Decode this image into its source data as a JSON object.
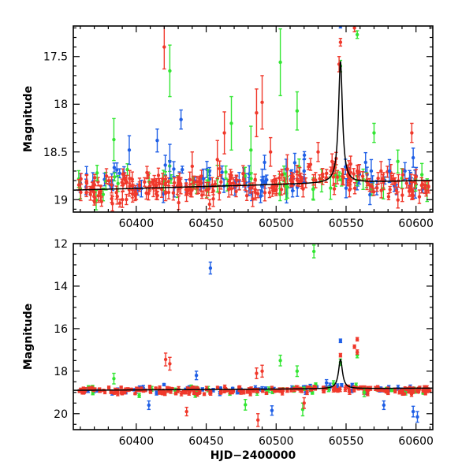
{
  "colors": {
    "green": "#33e633",
    "blue": "#1f5fe6",
    "red": "#f0382b",
    "model": "#000000"
  },
  "chart_data": [
    {
      "type": "scatter",
      "panel": "top",
      "ylabel": "Magnitude",
      "xlabel": "",
      "xlim": [
        60355,
        60612
      ],
      "ylim": [
        19.13,
        17.18
      ],
      "y_inverted": true,
      "x_ticks": [
        60400,
        60450,
        60500,
        60550,
        60600
      ],
      "y_ticks": [
        17.5,
        18,
        18.5,
        19
      ],
      "y_tick_labels": [
        "17.5",
        "18",
        "18.5",
        "19"
      ],
      "series": [
        {
          "color": "blue",
          "points": [
            [
              60395,
              18.48,
              0.15
            ],
            [
              60415,
              18.38,
              0.12
            ],
            [
              60424,
              18.6,
              0.18
            ],
            [
              60432,
              18.16,
              0.1
            ],
            [
              60448,
              18.78,
              0.1
            ],
            [
              60490,
              18.8,
              0.12
            ],
            [
              60520,
              18.7,
              0.12
            ],
            [
              60546,
              17.18,
              0.02
            ],
            [
              60550,
              18.88,
              0.1
            ],
            [
              60568,
              18.7,
              0.12
            ],
            [
              60581,
              18.7,
              0.12
            ],
            [
              60598,
              18.56,
              0.1
            ]
          ]
        },
        {
          "color": "green",
          "points": [
            [
              60372,
              18.72,
              0.08
            ],
            [
              60384,
              18.37,
              0.22
            ],
            [
              60424,
              17.65,
              0.27
            ],
            [
              60458,
              18.78,
              0.14
            ],
            [
              60468,
              18.2,
              0.28
            ],
            [
              60482,
              18.48,
              0.25
            ],
            [
              60503,
              17.56,
              0.35
            ],
            [
              60507,
              18.86,
              0.14
            ],
            [
              60515,
              18.07,
              0.2
            ],
            [
              60546,
              17.6,
              0.06
            ],
            [
              60558,
              17.27,
              0.04
            ],
            [
              60570,
              18.3,
              0.1
            ],
            [
              60587,
              18.6,
              0.12
            ]
          ]
        },
        {
          "color": "red",
          "points": [
            [
              60420,
              17.4,
              0.23
            ],
            [
              60440,
              18.65,
              0.15
            ],
            [
              60458,
              18.58,
              0.2
            ],
            [
              60463,
              18.3,
              0.22
            ],
            [
              60486,
              18.09,
              0.25
            ],
            [
              60490,
              17.98,
              0.28
            ],
            [
              60496,
              18.5,
              0.15
            ],
            [
              60508,
              18.68,
              0.15
            ],
            [
              60530,
              18.5,
              0.1
            ],
            [
              60540,
              18.6,
              0.08
            ],
            [
              60545,
              17.58,
              0.08
            ],
            [
              60546,
              17.35,
              0.04
            ],
            [
              60556,
              17.2,
              0.04
            ],
            [
              60558,
              18.7,
              0.06
            ],
            [
              60575,
              18.7,
              0.1
            ],
            [
              60597,
              18.3,
              0.1
            ],
            [
              60604,
              18.85,
              0.08
            ]
          ]
        }
      ],
      "scatter_band": {
        "blue": {
          "x_from": 60358,
          "x_to": 60610,
          "count": 75,
          "center_mag": 18.82,
          "scatter": 0.14,
          "error": 0.07
        },
        "green": {
          "x_from": 60358,
          "x_to": 60610,
          "count": 45,
          "center_mag": 18.84,
          "scatter": 0.14,
          "error": 0.08
        },
        "red": {
          "x_from": 60358,
          "x_to": 60610,
          "count": 230,
          "center_mag": 18.86,
          "scatter": 0.13,
          "error": 0.06
        }
      },
      "model_curve": {
        "baseline": 18.9,
        "trend": 0.0004,
        "peak_x": 60546,
        "peak_mag": 17.55,
        "width": 1.7
      }
    },
    {
      "type": "scatter",
      "panel": "bottom",
      "ylabel": "Magnitude",
      "xlabel": "HJD−2400000",
      "xlim": [
        60355,
        60612
      ],
      "ylim": [
        20.75,
        12.0
      ],
      "y_inverted": true,
      "x_ticks": [
        60400,
        60450,
        60500,
        60550,
        60600
      ],
      "y_ticks": [
        12,
        14,
        16,
        18,
        20
      ],
      "series": [
        {
          "color": "blue",
          "points": [
            [
              60453,
              13.15,
              0.28
            ],
            [
              60546,
              16.57,
              0.08
            ],
            [
              60443,
              18.2,
              0.2
            ],
            [
              60409,
              19.6,
              0.2
            ],
            [
              60497,
              19.85,
              0.22
            ],
            [
              60577,
              19.6,
              0.2
            ],
            [
              60598,
              19.9,
              0.25
            ],
            [
              60601,
              20.15,
              0.25
            ],
            [
              60536,
              18.55,
              0.15
            ]
          ]
        },
        {
          "color": "green",
          "points": [
            [
              60527,
              12.37,
              0.3
            ],
            [
              60503,
              17.5,
              0.25
            ],
            [
              60515,
              18.0,
              0.25
            ],
            [
              60384,
              18.35,
              0.25
            ],
            [
              60558,
              17.25,
              0.12
            ],
            [
              60546,
              17.58,
              0.15
            ],
            [
              60478,
              19.58,
              0.25
            ],
            [
              60519,
              19.8,
              0.3
            ],
            [
              60563,
              19.0,
              0.2
            ]
          ]
        },
        {
          "color": "red",
          "points": [
            [
              60421,
              17.45,
              0.3
            ],
            [
              60424,
              17.65,
              0.3
            ],
            [
              60486,
              18.1,
              0.25
            ],
            [
              60490,
              18.0,
              0.28
            ],
            [
              60558,
              16.5,
              0.08
            ],
            [
              60556,
              16.85,
              0.08
            ],
            [
              60546,
              17.25,
              0.08
            ],
            [
              60558,
              17.1,
              0.1
            ],
            [
              60487,
              20.3,
              0.3
            ],
            [
              60436,
              19.9,
              0.2
            ],
            [
              60520,
              19.5,
              0.25
            ]
          ]
        }
      ],
      "scatter_band": {
        "blue": {
          "x_from": 60358,
          "x_to": 60610,
          "count": 70,
          "center_mag": 18.88,
          "scatter": 0.16,
          "error": 0.08
        },
        "green": {
          "x_from": 60358,
          "x_to": 60610,
          "count": 40,
          "center_mag": 18.9,
          "scatter": 0.18,
          "error": 0.09
        },
        "red": {
          "x_from": 60358,
          "x_to": 60610,
          "count": 240,
          "center_mag": 18.92,
          "scatter": 0.14,
          "error": 0.07
        }
      },
      "model_curve": {
        "baseline": 18.9,
        "trend": 0.0004,
        "peak_x": 60546,
        "peak_mag": 17.45,
        "width": 1.7
      }
    }
  ]
}
